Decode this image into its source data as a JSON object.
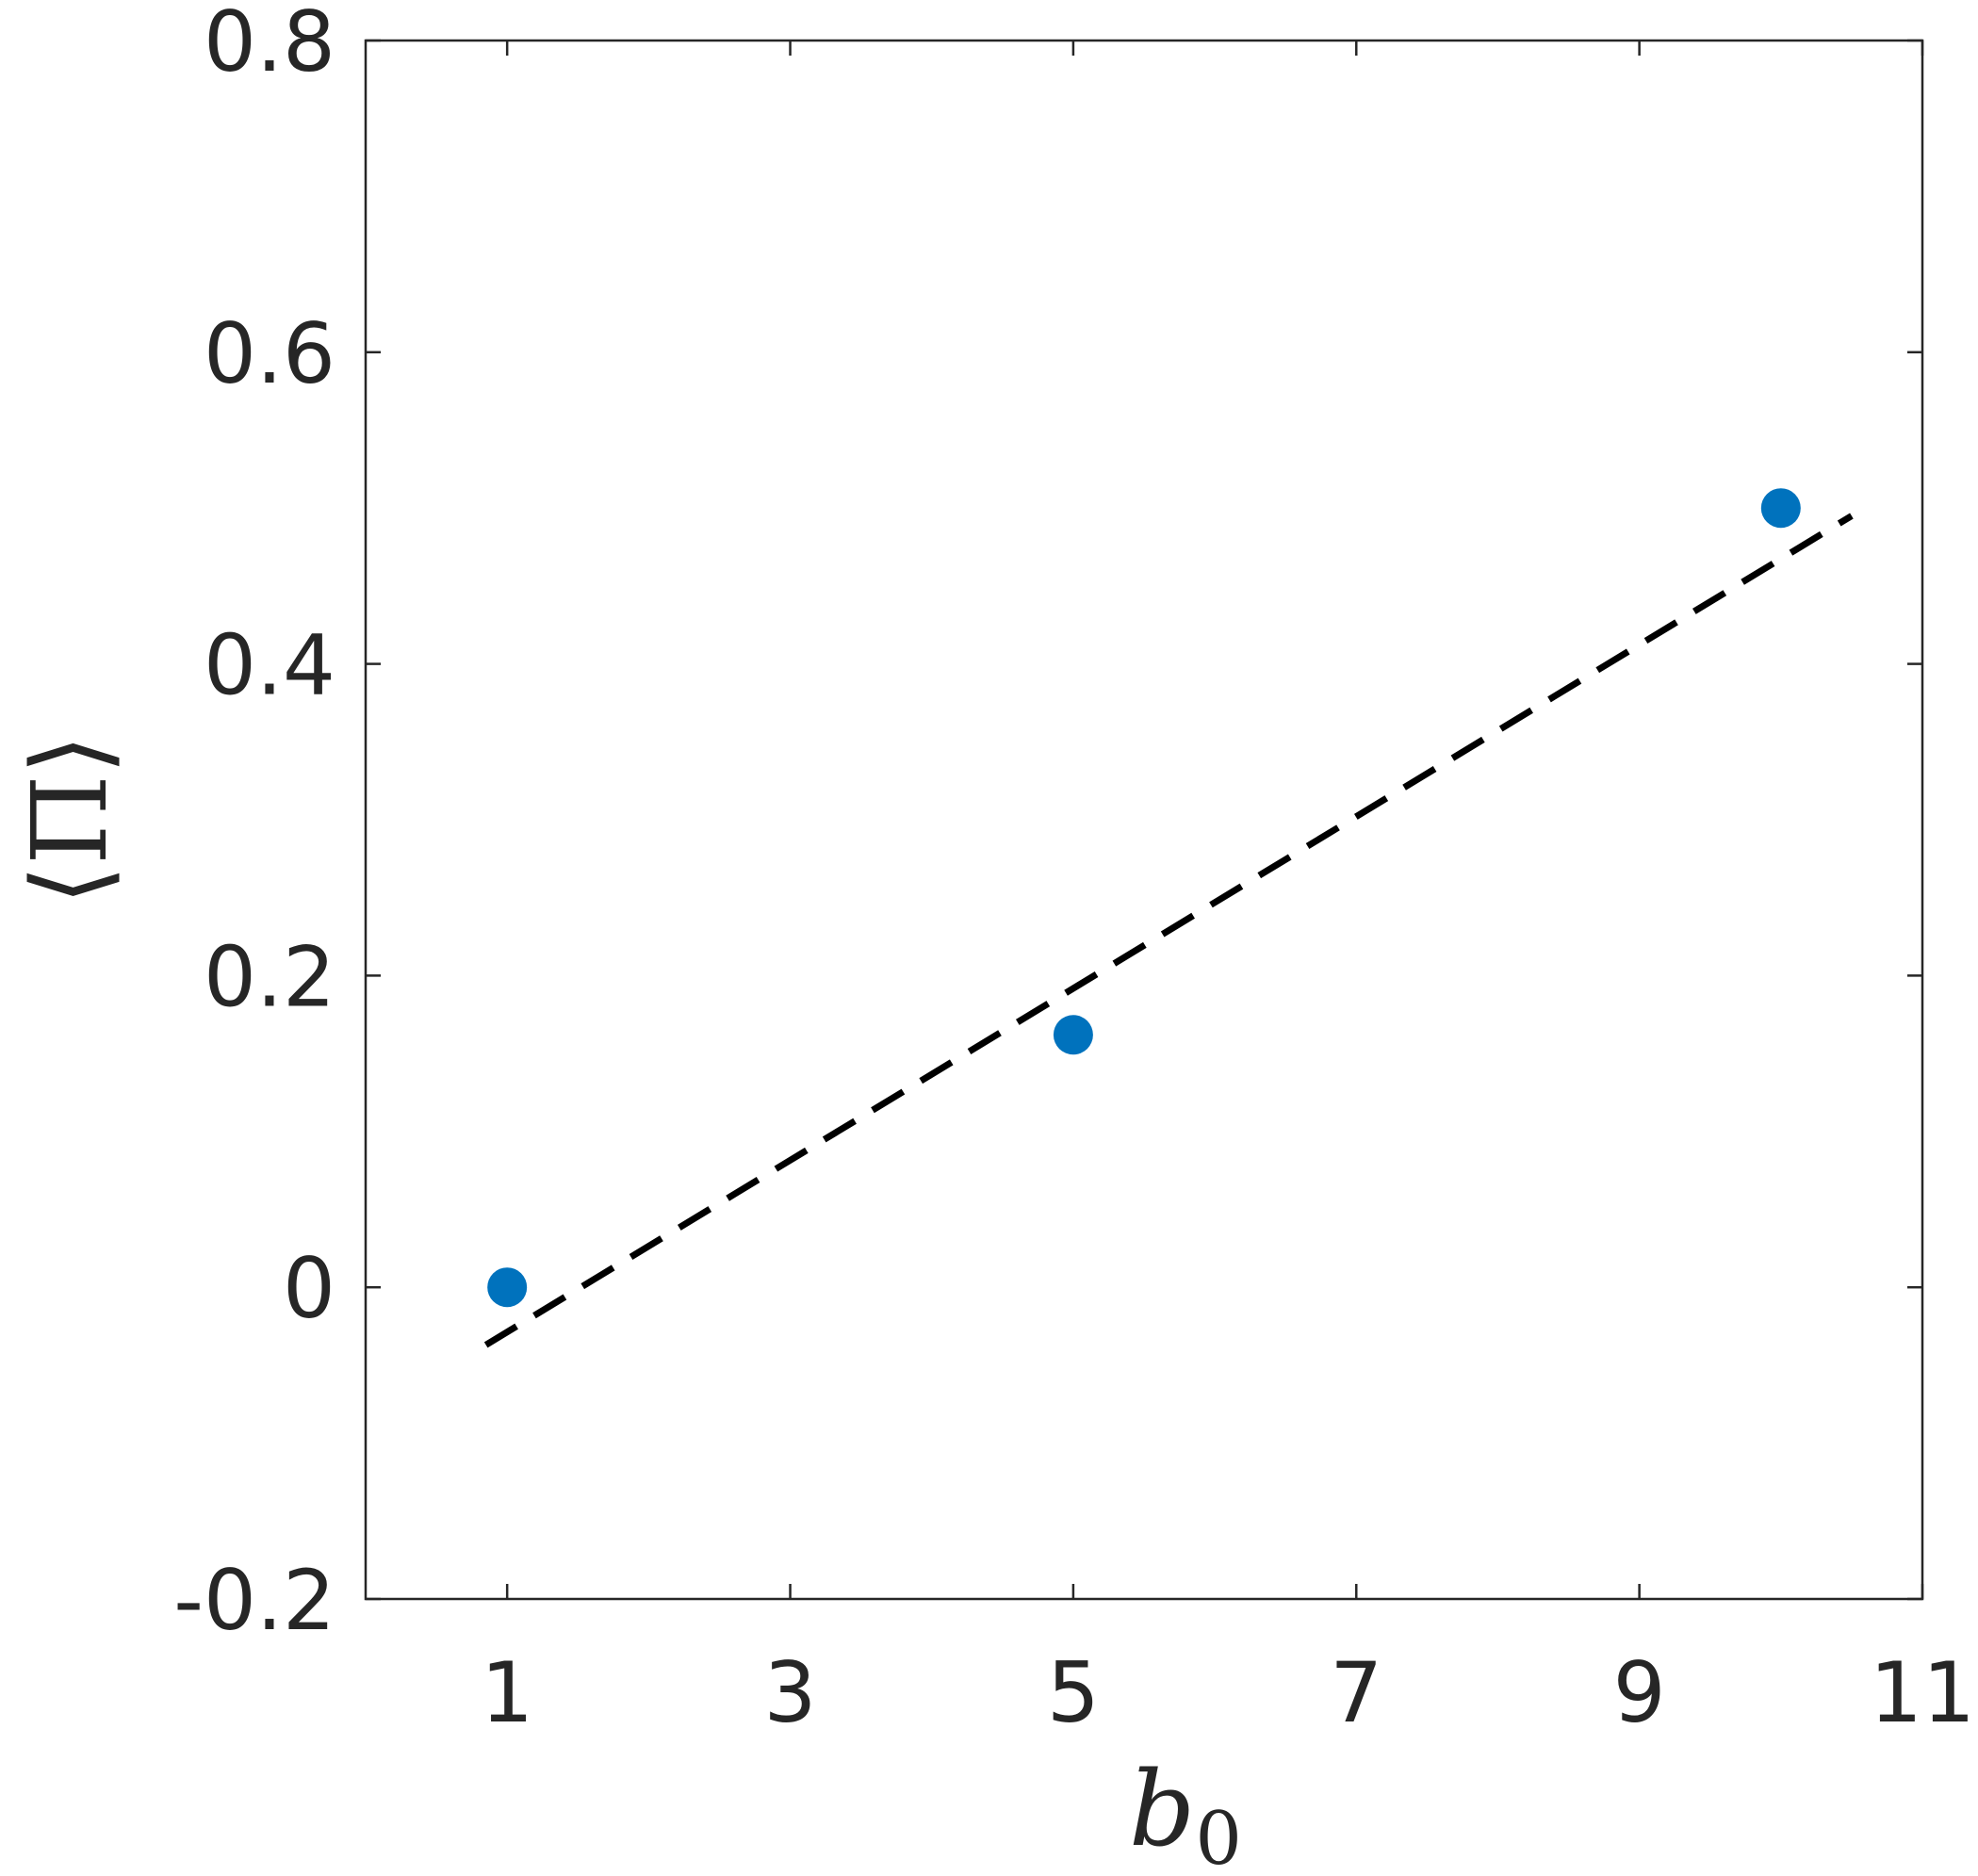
{
  "chart_data": {
    "type": "scatter",
    "xlabel": "b",
    "xlabel_subscript": "0",
    "ylabel": "⟨Π⟩",
    "xlim": [
      0,
      11
    ],
    "ylim": [
      -0.2,
      0.8
    ],
    "xticks": [
      1,
      3,
      5,
      7,
      9,
      11
    ],
    "yticks": [
      -0.2,
      0,
      0.2,
      0.4,
      0.6,
      0.8
    ],
    "xtick_labels": [
      "1",
      "3",
      "5",
      "7",
      "9",
      "11"
    ],
    "ytick_labels": [
      "-0.2",
      "0",
      "0.2",
      "0.4",
      "0.6",
      "0.8"
    ],
    "grid": false,
    "series": [
      {
        "type": "scatter",
        "color": "#0072BD",
        "x": [
          1,
          5,
          10
        ],
        "y": [
          0,
          0.162,
          0.5
        ]
      },
      {
        "type": "line",
        "style": "dashed",
        "color": "#000000",
        "x": [
          0.85,
          10.5
        ],
        "y": [
          -0.037,
          0.495
        ]
      }
    ]
  }
}
